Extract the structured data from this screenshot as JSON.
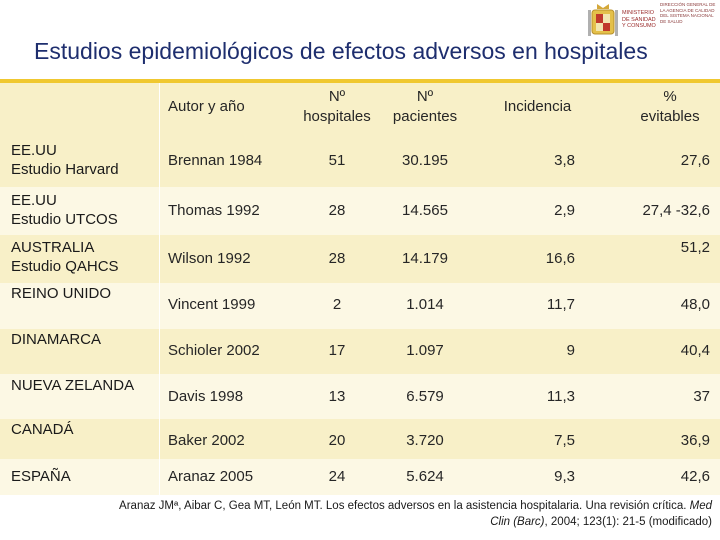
{
  "logo": {
    "ministry_text": "MINISTERIO DE SANIDAD Y CONSUMO",
    "agency_text": "DIRECCIÓN GENERAL DE LA AGENCIA DE CALIDAD DEL SISTEMA NACIONAL DE SALUD"
  },
  "title": "Estudios epidemiológicos de efectos adversos en hospitales",
  "colors": {
    "title": "#1e2e6e",
    "accent_line": "#f0c830",
    "row_dark": "#f8f0c8",
    "row_light": "#fcf8e4"
  },
  "table": {
    "headers": {
      "author": "Autor y año",
      "hospitals_1": "Nº",
      "hospitals_2": "hospitales",
      "patients_1": "Nº",
      "patients_2": "pacientes",
      "incidence": "Incidencia",
      "avoidable_1": "%",
      "avoidable_2": "evitables"
    },
    "rows": [
      {
        "country_1": "EE.UU",
        "country_2": "Estudio Harvard",
        "author": "Brennan 1984",
        "hospitals": "51",
        "patients": "30.195",
        "incidence": "3,8",
        "avoidable": "27,6"
      },
      {
        "country_1": "EE.UU",
        "country_2": "Estudio UTCOS",
        "author": "Thomas 1992",
        "hospitals": "28",
        "patients": "14.565",
        "incidence": "2,9",
        "avoidable": "27,4 -32,6"
      },
      {
        "country_1": "AUSTRALIA",
        "country_2": "Estudio QAHCS",
        "author": "Wilson 1992",
        "hospitals": "28",
        "patients": "14.179",
        "incidence": "16,6",
        "avoidable": "51,2"
      },
      {
        "country_1": "REINO  UNIDO",
        "country_2": "",
        "author": "Vincent 1999",
        "hospitals": "2",
        "patients": "1.014",
        "incidence": "11,7",
        "avoidable": "48,0"
      },
      {
        "country_1": "DINAMARCA",
        "country_2": "",
        "author": "Schioler 2002",
        "hospitals": "17",
        "patients": "1.097",
        "incidence": "9",
        "avoidable": "40,4"
      },
      {
        "country_1": "NUEVA  ZELANDA",
        "country_2": "",
        "author": "Davis 1998",
        "hospitals": "13",
        "patients": "6.579",
        "incidence": "11,3",
        "avoidable": "37"
      },
      {
        "country_1": "CANADÁ",
        "country_2": "",
        "author": "Baker 2002",
        "hospitals": "20",
        "patients": "3.720",
        "incidence": "7,5",
        "avoidable": "36,9"
      },
      {
        "country_1": "ESPAÑA",
        "country_2": "",
        "author": "Aranaz 2005",
        "hospitals": "24",
        "patients": "5.624",
        "incidence": "9,3",
        "avoidable": "42,6"
      }
    ]
  },
  "citation": {
    "line1_prefix": "Aranaz JMª, Aibar C, Gea MT, León MT. Los efectos adversos en la asistencia hospitalaria. Una revisión crítica.",
    "line1_italic": "Med",
    "line2_italic": "Clin (Barc)",
    "line2_suffix": ", 2004; 123(1): 21-5 (modificado)"
  }
}
